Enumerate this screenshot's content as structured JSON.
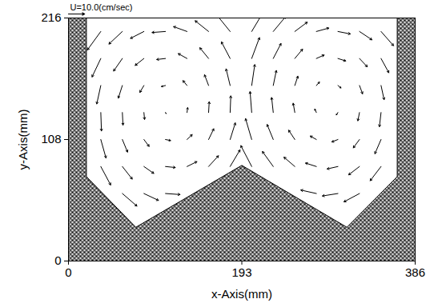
{
  "chart_data": {
    "type": "vector_field",
    "xlabel": "x-Axis(mm)",
    "ylabel": "y-Axis(mm)",
    "xlim": [
      0,
      386
    ],
    "ylim": [
      0,
      216
    ],
    "xticks": [
      0,
      193,
      386
    ],
    "yticks": [
      0,
      108,
      216
    ],
    "grid": false,
    "color": "#000000",
    "reference_vector": {
      "value": 10,
      "label": "U=10.0(cm/sec)"
    },
    "wall": {
      "x": [
        20,
        20,
        75,
        193,
        310,
        366,
        366
      ],
      "y": [
        216,
        75,
        30,
        85,
        30,
        75,
        216
      ]
    },
    "vectors": {
      "x": [
        60,
        84,
        108,
        36,
        60,
        84,
        108,
        132,
        156,
        180,
        36,
        60,
        84,
        108,
        132,
        156,
        180,
        36,
        60,
        84,
        108,
        132,
        156,
        180,
        36,
        60,
        84,
        108,
        132,
        156,
        180,
        36,
        60,
        84,
        108,
        132,
        156,
        180,
        36,
        60,
        84,
        108,
        132,
        156,
        180,
        276,
        300,
        324,
        204,
        228,
        252,
        276,
        300,
        324,
        348,
        204,
        228,
        252,
        276,
        300,
        324,
        348,
        204,
        228,
        252,
        276,
        300,
        324,
        348,
        204,
        228,
        252,
        276,
        300,
        324,
        348,
        204,
        228,
        252,
        276,
        300,
        324,
        348,
        204,
        228,
        252,
        276,
        300,
        324,
        348
      ],
      "y": [
        60,
        60,
        60,
        84,
        84,
        84,
        84,
        84,
        84,
        84,
        108,
        108,
        108,
        108,
        108,
        108,
        108,
        132,
        132,
        132,
        132,
        132,
        132,
        132,
        156,
        156,
        156,
        156,
        156,
        156,
        156,
        180,
        180,
        180,
        180,
        180,
        180,
        180,
        204,
        204,
        204,
        204,
        204,
        204,
        204,
        60,
        60,
        60,
        84,
        84,
        84,
        84,
        84,
        84,
        84,
        108,
        108,
        108,
        108,
        108,
        108,
        108,
        132,
        132,
        132,
        132,
        132,
        132,
        132,
        156,
        156,
        156,
        156,
        156,
        156,
        156,
        180,
        180,
        180,
        180,
        180,
        180,
        180,
        204,
        204,
        204,
        204,
        204,
        204,
        204
      ],
      "u": [
        9.0,
        9.0,
        9.0,
        6.1,
        6.1,
        6.1,
        6.1,
        6.1,
        6.1,
        6.1,
        3.2,
        3.2,
        3.2,
        3.2,
        3.2,
        3.2,
        3.2,
        0.4,
        0.4,
        0.4,
        0.4,
        0.4,
        0.4,
        0.4,
        -2.5,
        -2.5,
        -2.5,
        -2.5,
        -2.5,
        -2.5,
        -2.5,
        -5.4,
        -5.4,
        -5.4,
        -5.4,
        -5.4,
        -5.4,
        -5.4,
        -8.3,
        -8.3,
        -8.3,
        -8.3,
        -8.3,
        -8.3,
        -8.3,
        -9.6,
        -9.6,
        -9.6,
        -6.7,
        -6.7,
        -6.7,
        -6.7,
        -6.7,
        -6.7,
        -6.7,
        -3.8,
        -3.8,
        -3.8,
        -3.8,
        -3.8,
        -3.8,
        -3.8,
        -1.0,
        -1.0,
        -1.0,
        -1.0,
        -1.0,
        -1.0,
        -1.0,
        1.9,
        1.9,
        1.9,
        1.9,
        1.9,
        1.9,
        1.9,
        4.8,
        4.8,
        4.8,
        4.8,
        4.8,
        4.8,
        4.8,
        7.7,
        7.7,
        7.7,
        7.7,
        7.7,
        7.7,
        7.7
      ],
      "v": [
        -6.2,
        -3.4,
        -0.5,
        -9.1,
        -6.2,
        -3.4,
        -0.5,
        2.4,
        5.3,
        8.2,
        -9.1,
        -6.2,
        -3.4,
        -0.5,
        2.4,
        5.3,
        8.2,
        -9.1,
        -6.2,
        -3.4,
        -0.5,
        2.4,
        5.3,
        8.2,
        -9.1,
        -6.2,
        -3.4,
        -0.5,
        2.4,
        5.3,
        8.2,
        -9.1,
        -6.2,
        -3.4,
        -0.5,
        2.4,
        5.3,
        8.2,
        -9.1,
        -6.2,
        -3.4,
        -0.5,
        2.4,
        5.3,
        8.2,
        1.7,
        -1.2,
        -4.1,
        10.3,
        7.4,
        4.6,
        1.7,
        -1.2,
        -4.1,
        -7.0,
        10.3,
        7.4,
        4.6,
        1.7,
        -1.2,
        -4.1,
        -7.0,
        10.3,
        7.4,
        4.6,
        1.7,
        -1.2,
        -4.1,
        -7.0,
        10.3,
        7.4,
        4.6,
        1.7,
        -1.2,
        -4.1,
        -7.0,
        10.3,
        7.4,
        4.6,
        1.7,
        -1.2,
        -4.1,
        -7.0,
        10.3,
        7.4,
        4.6,
        1.7,
        -1.2,
        -4.1,
        -7.0
      ]
    }
  }
}
